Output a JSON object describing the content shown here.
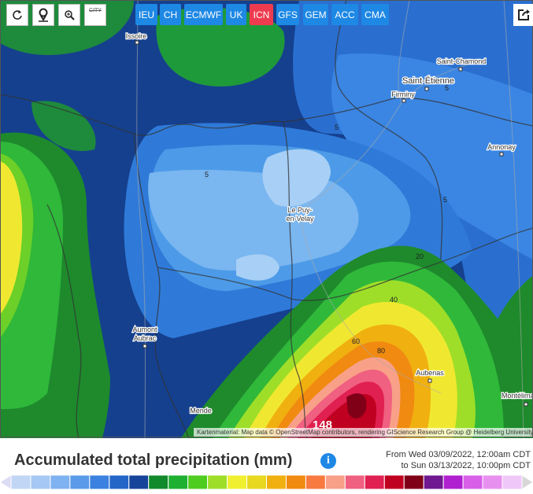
{
  "toolbar": {
    "models": [
      "IEU",
      "CH",
      "ECMWF",
      "UK",
      "ICN",
      "GFS",
      "GEM",
      "ACC",
      "CMA"
    ],
    "city_button": "CITY"
  },
  "map": {
    "places": [
      "Issoire",
      "Saint-Chamond",
      "Saint-Étienne",
      "Firminy",
      "Annonay",
      "Le Puy-",
      "en-Velay",
      "Aumont",
      "Aubrac",
      "Mende",
      "Aubenas",
      "Montélimar"
    ],
    "contour_labels": [
      "5",
      "5",
      "5",
      "5",
      "20",
      "40",
      "60",
      "80",
      "148"
    ],
    "attribution": "Kartenmaterial: Map data © OpenStreetMap contributors, rendering GIScience Research Group @ Heidelberg University"
  },
  "legend": {
    "title": "Accumulated total precipitation (mm)",
    "from": "From Wed 03/09/2022, 12:00am CDT",
    "to": "to Sun 03/13/2022, 10:00pm CDT",
    "colors": [
      "#dcdcf5",
      "#c1d6f5",
      "#a5c8f5",
      "#7fb2f0",
      "#5a9ae8",
      "#3b82e0",
      "#2466c8",
      "#16449a",
      "#108a2a",
      "#1eb030",
      "#4ecc20",
      "#9ede28",
      "#f0f030",
      "#e8d820",
      "#f0b010",
      "#f08a10",
      "#f87a40",
      "#f8a088",
      "#f06080",
      "#e02050",
      "#c00020",
      "#800018",
      "#701890",
      "#b020d0",
      "#d860e8",
      "#e890f0",
      "#f0c8f8",
      "#d8d8d8"
    ]
  }
}
